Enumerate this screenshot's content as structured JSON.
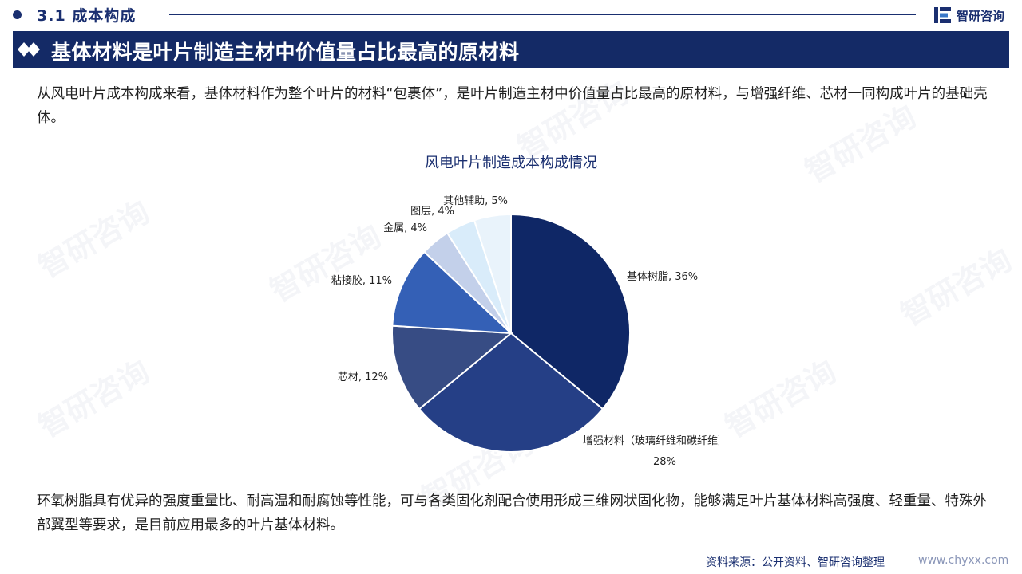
{
  "header": {
    "section_title": "3.1  成本构成",
    "brand_name": "智研咨询"
  },
  "banner": {
    "title": "基体材料是叶片制造主材中价值量占比最高的原材料"
  },
  "intro_text": "从风电叶片成本构成来看，基体材料作为整个叶片的材料“包裹体”，是叶片制造主材中价值量占比最高的原材料，与增强纤维、芯材一同构成叶片的基础壳体。",
  "conclusion_text": "环氧树脂具有优异的强度重量比、耐高温和耐腐蚀等性能，可与各类固化剂配合使用形成三维网状固化物，能够满足叶片基体材料高强度、轻重量、特殊外部翼型等要求，是目前应用最多的叶片基体材料。",
  "footer": {
    "source": "资料来源：公开资料、智研咨询整理",
    "url": "www.chyxx.com"
  },
  "chart_data": {
    "type": "pie",
    "title": "风电叶片制造成本构成情况",
    "unit": "%",
    "slices": [
      {
        "label": "基体树脂",
        "value": 36,
        "display": "基体树脂, 36%",
        "color": "#0f2766"
      },
      {
        "label": "增强材料（玻璃纤维和碳纤维）",
        "value": 28,
        "display": "增强材料（玻璃纤维和碳纤维），",
        "display2": "28%",
        "color": "#253f86"
      },
      {
        "label": "芯材",
        "value": 12,
        "display": "芯材, 12%",
        "color": "#374c84"
      },
      {
        "label": "粘接胶",
        "value": 11,
        "display": "粘接胶, 11%",
        "color": "#3460b6"
      },
      {
        "label": "金属",
        "value": 4,
        "display": "金属, 4%",
        "color": "#c3d0ea"
      },
      {
        "label": "图层",
        "value": 4,
        "display": "图层, 4%",
        "color": "#d9ecfa"
      },
      {
        "label": "其他辅助",
        "value": 5,
        "display": "其他辅助, 5%",
        "color": "#e9f3fb"
      }
    ]
  }
}
